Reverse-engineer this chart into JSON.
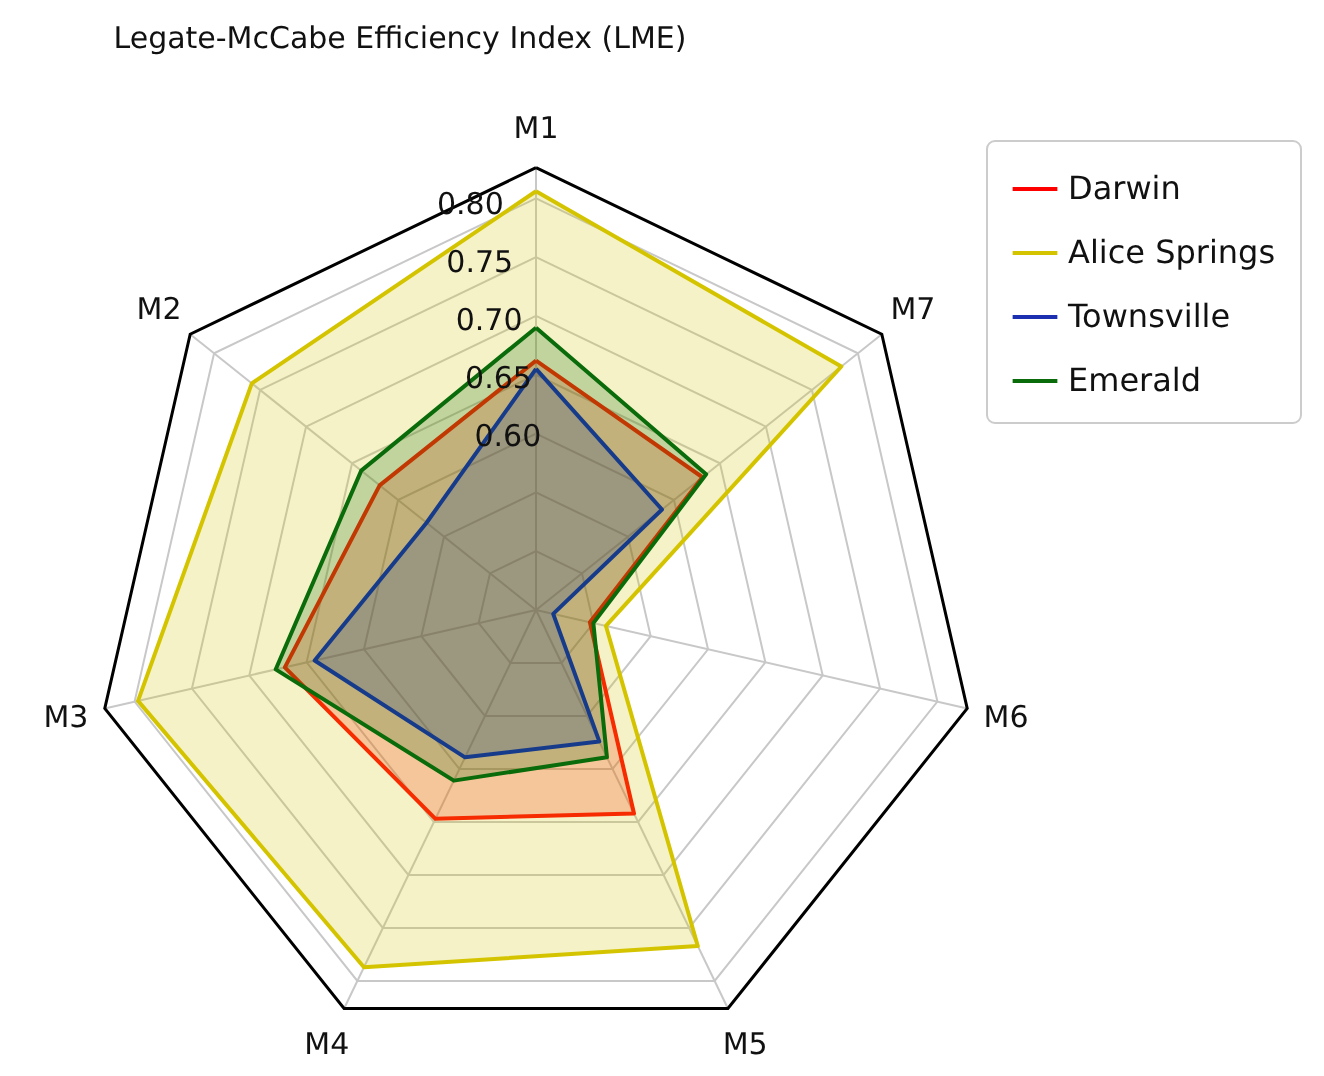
{
  "chart_data": {
    "type": "radar",
    "title": "Legate-McCabe Efficiency Index (LME)",
    "categories": [
      "M1",
      "M7",
      "M6",
      "M5",
      "M4",
      "M3",
      "M2"
    ],
    "series": [
      {
        "name": "Darwin",
        "color": "#ff0000",
        "values": [
          0.662,
          0.631,
          0.497,
          0.642,
          0.647,
          0.669,
          0.62
        ]
      },
      {
        "name": "Alice Springs",
        "color": "#d4c400",
        "values": [
          0.806,
          0.782,
          0.511,
          0.767,
          0.787,
          0.797,
          0.759
        ]
      },
      {
        "name": "Townsville",
        "color": "#1c2fb0",
        "values": [
          0.655,
          0.587,
          0.465,
          0.574,
          0.589,
          0.643,
          0.569
        ]
      },
      {
        "name": "Emerald",
        "color": "#0a6b0a",
        "values": [
          0.69,
          0.635,
          0.5,
          0.589,
          0.611,
          0.677,
          0.64
        ]
      }
    ],
    "ylim": [
      0.45,
      0.826
    ],
    "yticks": [
      {
        "value": 0.6,
        "label": "0.60"
      },
      0.65,
      {
        "value": 0.7,
        "label": "0.70"
      },
      0.75,
      {
        "value": 0.8,
        "label": "0.80"
      }
    ],
    "grid": true,
    "legend": "top right"
  }
}
